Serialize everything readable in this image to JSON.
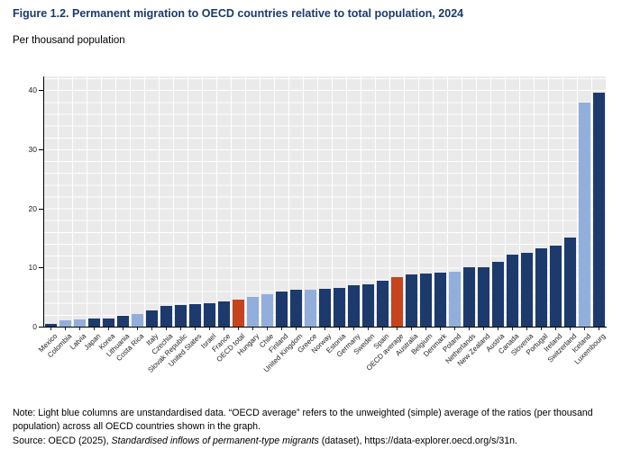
{
  "header": {
    "title": "Figure 1.2. Permanent migration to OECD countries relative to total population, 2024",
    "unit": "Per thousand population"
  },
  "theme": {
    "title_color": "#1b3a6b",
    "panel_bg": "#eaeaea",
    "gridline_color": "#ffffff"
  },
  "chart_data": {
    "type": "bar",
    "title": "Figure 1.2. Permanent migration to OECD countries relative to total population, 2024",
    "xlabel": "",
    "ylabel": "Per thousand population",
    "ylim": [
      0,
      42.3
    ],
    "yticks": [
      0,
      10,
      20,
      30,
      40
    ],
    "grid": "white gridlines on light grey panel, horizontal every 2 units, vertical between bars",
    "legend_position": "none",
    "colors": {
      "standardised": "#1d3a6d",
      "unstandardised": "#92afdb",
      "oecd_aggregate": "#c5431d"
    },
    "series": [
      {
        "name": "Mexico",
        "value": 0.4,
        "type": "standardised"
      },
      {
        "name": "Colombia",
        "value": 1.0,
        "type": "unstandardised"
      },
      {
        "name": "Latvia",
        "value": 1.2,
        "type": "unstandardised"
      },
      {
        "name": "Japan",
        "value": 1.3,
        "type": "standardised"
      },
      {
        "name": "Korea",
        "value": 1.4,
        "type": "standardised"
      },
      {
        "name": "Lithuania",
        "value": 1.8,
        "type": "standardised"
      },
      {
        "name": "Costa Rica",
        "value": 2.2,
        "type": "unstandardised"
      },
      {
        "name": "Italy",
        "value": 2.7,
        "type": "standardised"
      },
      {
        "name": "Czechia",
        "value": 3.5,
        "type": "standardised"
      },
      {
        "name": "Slovak Republic",
        "value": 3.6,
        "type": "standardised"
      },
      {
        "name": "United States",
        "value": 3.8,
        "type": "standardised"
      },
      {
        "name": "Israel",
        "value": 4.0,
        "type": "standardised"
      },
      {
        "name": "France",
        "value": 4.3,
        "type": "standardised"
      },
      {
        "name": "OECD total",
        "value": 4.5,
        "type": "oecd_aggregate"
      },
      {
        "name": "Hungary",
        "value": 5.0,
        "type": "unstandardised"
      },
      {
        "name": "Chile",
        "value": 5.5,
        "type": "unstandardised"
      },
      {
        "name": "Finland",
        "value": 6.0,
        "type": "standardised"
      },
      {
        "name": "United Kingdom",
        "value": 6.2,
        "type": "standardised"
      },
      {
        "name": "Greece",
        "value": 6.2,
        "type": "unstandardised"
      },
      {
        "name": "Norway",
        "value": 6.4,
        "type": "standardised"
      },
      {
        "name": "Estonia",
        "value": 6.5,
        "type": "standardised"
      },
      {
        "name": "Germany",
        "value": 7.0,
        "type": "standardised"
      },
      {
        "name": "Sweden",
        "value": 7.2,
        "type": "standardised"
      },
      {
        "name": "Spain",
        "value": 7.8,
        "type": "standardised"
      },
      {
        "name": "OECD average",
        "value": 8.3,
        "type": "oecd_aggregate"
      },
      {
        "name": "Australia",
        "value": 8.9,
        "type": "standardised"
      },
      {
        "name": "Belgium",
        "value": 9.0,
        "type": "standardised"
      },
      {
        "name": "Denmark",
        "value": 9.1,
        "type": "standardised"
      },
      {
        "name": "Poland",
        "value": 9.3,
        "type": "unstandardised"
      },
      {
        "name": "Netherlands",
        "value": 10.0,
        "type": "standardised"
      },
      {
        "name": "New Zealand",
        "value": 10.1,
        "type": "standardised"
      },
      {
        "name": "Austria",
        "value": 10.9,
        "type": "standardised"
      },
      {
        "name": "Canada",
        "value": 12.2,
        "type": "standardised"
      },
      {
        "name": "Slovenia",
        "value": 12.5,
        "type": "standardised"
      },
      {
        "name": "Portugal",
        "value": 13.2,
        "type": "standardised"
      },
      {
        "name": "Ireland",
        "value": 13.7,
        "type": "standardised"
      },
      {
        "name": "Switzerland",
        "value": 15.1,
        "type": "standardised"
      },
      {
        "name": "Iceland",
        "value": 37.9,
        "type": "unstandardised"
      },
      {
        "name": "Luxembourg",
        "value": 39.5,
        "type": "standardised"
      }
    ]
  },
  "footer": {
    "note_line": "Note: Light blue columns are unstandardised data. “OECD average” refers to the unweighted (simple) average of the ratios (per thousand population) across all OECD countries shown in the graph.",
    "source_prefix": "Source: OECD (2025), ",
    "source_italic": "Standardised inflows of permanent-type migrants",
    "source_suffix": " (dataset), https://data-explorer.oecd.org/s/31n."
  }
}
